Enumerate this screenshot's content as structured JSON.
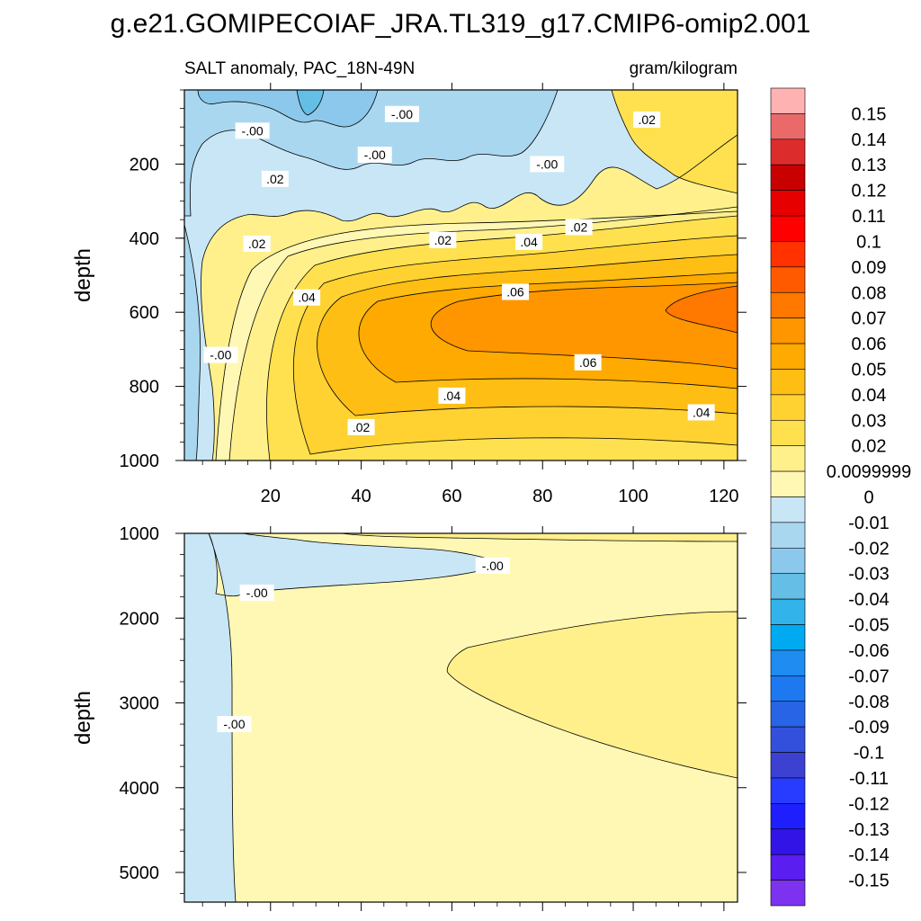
{
  "title": "g.e21.GOMIPECOIAF_JRA.TL319_g17.CMIP6-omip2.001",
  "subtitle_left": "SALT anomaly, PAC_18N-49N",
  "subtitle_right": "gram/kilogram",
  "chart_data": [
    {
      "type": "contour",
      "panel": "upper",
      "ylabel": "depth",
      "xlabel": "",
      "xlim": [
        1,
        123
      ],
      "ylim": [
        1000,
        0
      ],
      "x_ticks": [
        20,
        40,
        60,
        80,
        100,
        120
      ],
      "y_ticks": [
        200,
        400,
        600,
        800,
        1000
      ],
      "contour_labels": [
        {
          "text": "-.00",
          "x": 16,
          "y": 110
        },
        {
          "text": ".02",
          "x": 21,
          "y": 240
        },
        {
          "text": "-.00",
          "x": 49,
          "y": 65
        },
        {
          "text": "-.00",
          "x": 43,
          "y": 175
        },
        {
          "text": "-.00",
          "x": 81,
          "y": 200
        },
        {
          "text": ".02",
          "x": 103,
          "y": 80
        },
        {
          "text": ".02",
          "x": 17,
          "y": 415
        },
        {
          "text": ".02",
          "x": 58,
          "y": 405
        },
        {
          "text": ".04",
          "x": 77,
          "y": 410
        },
        {
          "text": ".02",
          "x": 88,
          "y": 370
        },
        {
          "text": ".04",
          "x": 28,
          "y": 560
        },
        {
          "text": ".06",
          "x": 74,
          "y": 545
        },
        {
          "text": "-.00",
          "x": 9,
          "y": 715
        },
        {
          "text": ".06",
          "x": 90,
          "y": 735
        },
        {
          "text": ".04",
          "x": 60,
          "y": 825
        },
        {
          "text": ".04",
          "x": 115,
          "y": 870
        },
        {
          "text": ".02",
          "x": 40,
          "y": 910
        }
      ]
    },
    {
      "type": "contour",
      "panel": "lower",
      "ylabel": "depth",
      "xlabel": "",
      "xlim": [
        1,
        123
      ],
      "ylim": [
        5350,
        1000
      ],
      "x_ticks": [
        20,
        40,
        60,
        80,
        100,
        120
      ],
      "y_ticks": [
        1000,
        2000,
        3000,
        4000,
        5000
      ],
      "contour_labels": [
        {
          "text": "-.00",
          "x": 69,
          "y": 1380
        },
        {
          "text": "-.00",
          "x": 17,
          "y": 1700
        },
        {
          "text": "-.00",
          "x": 12,
          "y": 3250
        }
      ]
    }
  ],
  "colorbar": {
    "labels": [
      "0.15",
      "0.14",
      "0.13",
      "0.12",
      "0.11",
      "0.1",
      "0.09",
      "0.08",
      "0.07",
      "0.06",
      "0.05",
      "0.04",
      "0.03",
      "0.02",
      "0.0099999",
      "0",
      "-0.01",
      "-0.02",
      "-0.03",
      "-0.04",
      "-0.05",
      "-0.06",
      "-0.07",
      "-0.08",
      "-0.09",
      "-0.1",
      "-0.11",
      "-0.12",
      "-0.13",
      "-0.14",
      "-0.15"
    ],
    "colors": [
      "#ffb2b2",
      "#ea6a6a",
      "#dc2c2c",
      "#c80000",
      "#e60000",
      "#ff0000",
      "#ff3200",
      "#ff5a00",
      "#ff7800",
      "#ff9600",
      "#ffaa00",
      "#ffbe14",
      "#ffd232",
      "#ffe150",
      "#fff08c",
      "#fff8b4",
      "#c8e6f5",
      "#aad7f0",
      "#8cc8eb",
      "#64bee6",
      "#32b4eb",
      "#00aaf0",
      "#1e8cf0",
      "#1e78f0",
      "#2864e6",
      "#3250dc",
      "#3c41d2",
      "#283cff",
      "#1e1eff",
      "#3214e6",
      "#5a1ef0",
      "#7d32f0"
    ]
  },
  "fills": {
    "neg1": "#c8e6f5",
    "neg2": "#aad7f0",
    "neg3": "#8cc8eb",
    "neg4": "#64bee6",
    "zero": "#fff8b4",
    "p01": "#fff08c",
    "p02": "#ffe150",
    "p03": "#ffd232",
    "p04": "#ffbe14",
    "p05": "#ffaa00",
    "p06": "#ff9600",
    "p07": "#ff7800"
  }
}
